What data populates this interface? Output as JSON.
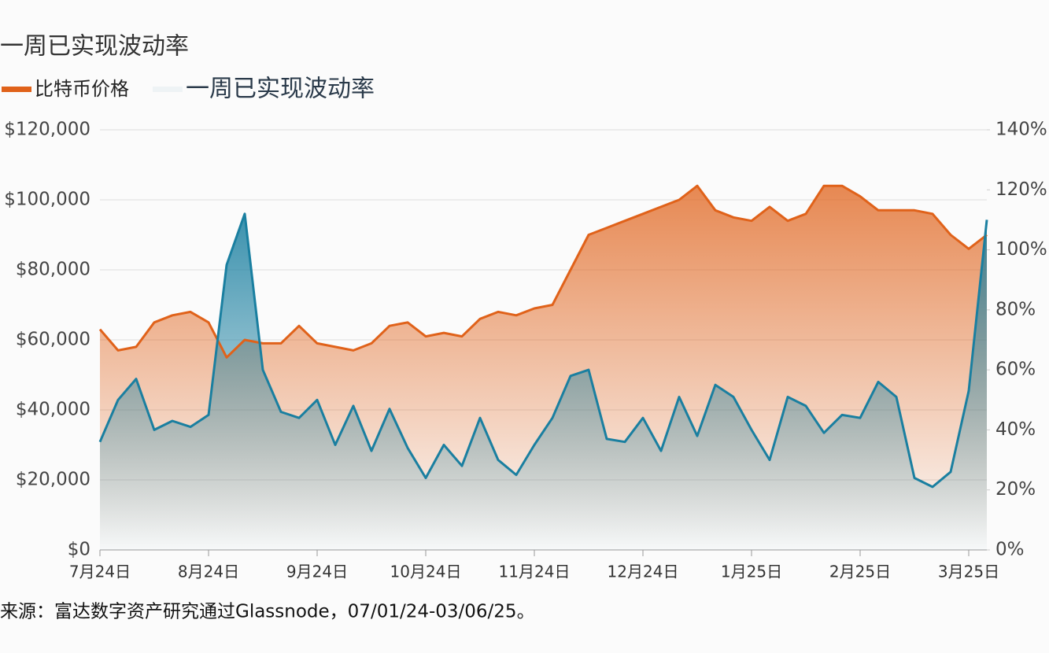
{
  "chart_data": {
    "type": "line",
    "title": "一周已实现波动率",
    "source": "来源：富达数字资产研究通过Glassnode，07/01/24-03/06/25。",
    "categories": [
      "7月24日",
      null,
      null,
      null,
      null,
      null,
      "8月24日",
      null,
      null,
      null,
      null,
      null,
      "9月24日",
      null,
      null,
      null,
      null,
      null,
      "10月24日",
      null,
      null,
      null,
      null,
      null,
      "11月24日",
      null,
      null,
      null,
      null,
      null,
      "12月24日",
      null,
      null,
      null,
      null,
      null,
      "1月25日",
      null,
      null,
      null,
      null,
      null,
      "2月25日",
      null,
      null,
      null,
      null,
      null,
      "3月25日",
      null
    ],
    "series": [
      {
        "name": "比特币价格",
        "color": "#e0621a",
        "axis": "y",
        "values": [
          63000,
          57000,
          58000,
          65000,
          67000,
          68000,
          65000,
          55000,
          60000,
          59000,
          59000,
          64000,
          59000,
          58000,
          57000,
          59000,
          64000,
          65000,
          61000,
          62000,
          61000,
          66000,
          68000,
          67000,
          69000,
          70000,
          80000,
          90000,
          92000,
          94000,
          96000,
          98000,
          100000,
          104000,
          97000,
          95000,
          94000,
          98000,
          94000,
          96000,
          104000,
          104000,
          101000,
          97000,
          97000,
          97000,
          96000,
          90000,
          86000,
          90000
        ]
      },
      {
        "name": "一周已实现波动率",
        "color": "#1a7fa0",
        "axis": "y2",
        "values": [
          36,
          50,
          57,
          40,
          43,
          41,
          45,
          95,
          112,
          60,
          46,
          44,
          50,
          35,
          48,
          33,
          47,
          34,
          24,
          35,
          28,
          44,
          30,
          25,
          35,
          44,
          58,
          60,
          37,
          36,
          44,
          33,
          51,
          38,
          55,
          51,
          40,
          30,
          51,
          48,
          39,
          45,
          44,
          56,
          51,
          24,
          21,
          26,
          53,
          110
        ]
      }
    ],
    "ylim": [
      0,
      120000
    ],
    "yticks": [
      {
        "value": 0,
        "label": "$0"
      },
      {
        "value": 20000,
        "label": "$20,000"
      },
      {
        "value": 40000,
        "label": "$40,000"
      },
      {
        "value": 60000,
        "label": "$60,000"
      },
      {
        "value": 80000,
        "label": "$80,000"
      },
      {
        "value": 100000,
        "label": "$100,000"
      },
      {
        "value": 120000,
        "label": "$120,000"
      }
    ],
    "y2lim": [
      0,
      140
    ],
    "y2ticks": [
      {
        "value": 0,
        "label": "0%"
      },
      {
        "value": 20,
        "label": "20%"
      },
      {
        "value": 40,
        "label": "40%"
      },
      {
        "value": 60,
        "label": "60%"
      },
      {
        "value": 80,
        "label": "80%"
      },
      {
        "value": 100,
        "label": "100%"
      },
      {
        "value": 120,
        "label": "120%"
      },
      {
        "value": 140,
        "label": "140%"
      }
    ],
    "grid": true
  }
}
